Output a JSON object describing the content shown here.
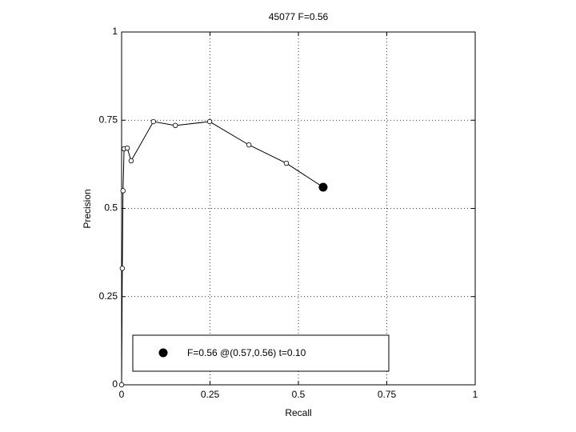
{
  "chart_data": {
    "type": "line",
    "title": "45077 F=0.56",
    "x_label": "Recall",
    "y_label": "Precision",
    "xlim": [
      0,
      1
    ],
    "ylim": [
      0,
      1
    ],
    "xticks": [
      0,
      0.25,
      0.5,
      0.75,
      1
    ],
    "yticks": [
      0,
      0.25,
      0.5,
      0.75,
      1
    ],
    "grid": true,
    "series": [
      {
        "color": "#000000",
        "x": [
          0,
          0.002,
          0.004,
          0.007,
          0.016,
          0.027,
          0.09,
          0.152,
          0.249,
          0.36,
          0.466,
          0.57
        ],
        "values": [
          0,
          0.33,
          0.55,
          0.669,
          0.671,
          0.635,
          0.746,
          0.735,
          0.746,
          0.68,
          0.628,
          0.56
        ]
      }
    ],
    "best_point": {
      "name": "F=0.56 @(0.57,0.56) t=0.10",
      "x": 0.57,
      "y": 0.56,
      "color": "#000000"
    }
  }
}
